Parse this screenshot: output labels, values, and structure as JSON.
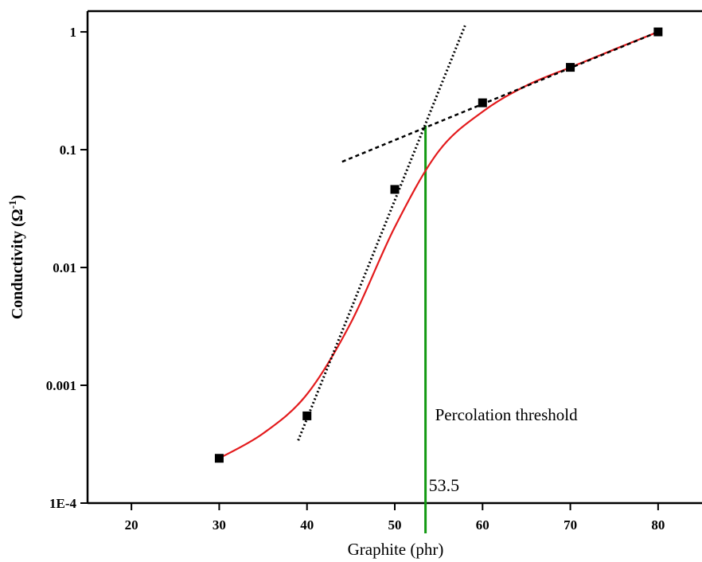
{
  "chart_data": {
    "type": "line",
    "x_label": "Graphite (phr)",
    "y_label_parts": [
      "Conductivity (Ω",
      "-1",
      ")"
    ],
    "xlim": [
      15,
      85
    ],
    "xticks": [
      20,
      30,
      40,
      50,
      60,
      70,
      80
    ],
    "ylim": [
      0.0001,
      1.5
    ],
    "log_y": true,
    "yticks": [
      {
        "value": 0.0001,
        "label": "1E-4"
      },
      0.001,
      0.01,
      0.1,
      1
    ],
    "series": [
      {
        "x": [
          30,
          40,
          50,
          60,
          70,
          80
        ],
        "values": [
          0.00024,
          0.00055,
          0.046,
          0.25,
          0.5,
          1.0
        ],
        "color": "#000000",
        "style": "markers"
      },
      {
        "x": [
          30,
          35,
          40,
          45,
          50,
          55,
          60,
          65,
          70,
          75,
          80
        ],
        "values": [
          0.00024,
          0.00039,
          0.00084,
          0.0034,
          0.022,
          0.097,
          0.21,
          0.35,
          0.5,
          0.71,
          1.0
        ],
        "color": "#e31a1c",
        "style": "smooth"
      },
      {
        "x": [
          39,
          58
        ],
        "values": [
          0.00034,
          1.13
        ],
        "color": "#000000",
        "style": "dotted"
      },
      {
        "x": [
          44,
          80
        ],
        "values": [
          0.079,
          1.0
        ],
        "color": "#000000",
        "style": "dashed"
      }
    ],
    "threshold": {
      "x": 53.5,
      "top": 0.16,
      "color": "#139a13",
      "label": "Percolation threshold"
    }
  }
}
